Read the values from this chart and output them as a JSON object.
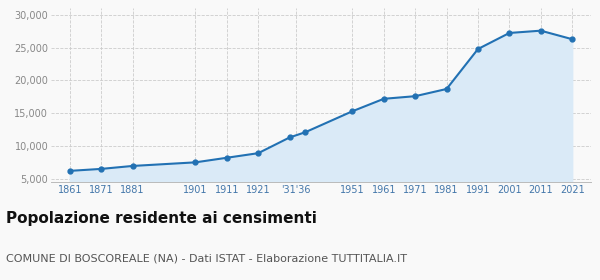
{
  "years": [
    1861,
    1871,
    1881,
    1901,
    1911,
    1921,
    1931,
    1936,
    1951,
    1961,
    1971,
    1981,
    1991,
    2001,
    2011,
    2021
  ],
  "population": [
    6200,
    6500,
    6950,
    7500,
    8200,
    8900,
    11300,
    12100,
    15300,
    17200,
    17600,
    18700,
    24800,
    27250,
    27600,
    26300
  ],
  "x_tick_positions": [
    1861,
    1871,
    1881,
    1901,
    1911,
    1921,
    1933,
    1951,
    1961,
    1971,
    1981,
    1991,
    2001,
    2011,
    2021
  ],
  "x_tick_labels": [
    "1861",
    "1871",
    "1881",
    "1901",
    "1911",
    "1921",
    "'31'36",
    "1951",
    "1961",
    "1971",
    "1981",
    "1991",
    "2001",
    "2011",
    "2021"
  ],
  "line_color": "#2271b3",
  "fill_color": "#daeaf7",
  "marker_color": "#2271b3",
  "grid_color": "#cccccc",
  "background_color": "#f9f9f9",
  "title": "Popolazione residente ai censimenti",
  "subtitle": "COMUNE DI BOSCOREALE (NA) - Dati ISTAT - Elaborazione TUTTITALIA.IT",
  "title_fontsize": 11,
  "subtitle_fontsize": 8,
  "ylim": [
    4500,
    31000
  ],
  "yticks": [
    5000,
    10000,
    15000,
    20000,
    25000,
    30000
  ],
  "xlim_left": 1855,
  "xlim_right": 2027
}
